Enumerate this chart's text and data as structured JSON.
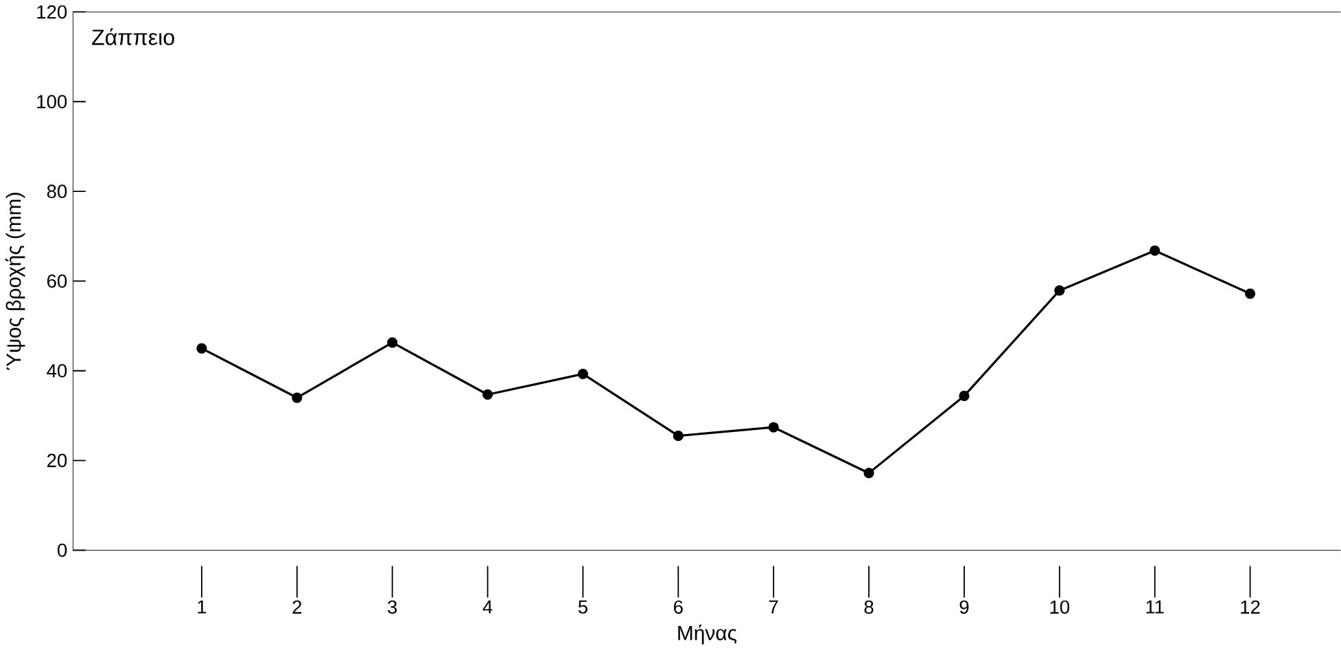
{
  "chart_data": {
    "type": "line",
    "title": "Ζάππειο",
    "xlabel": "Μήνας",
    "ylabel": "Ύψος βροχής (mm)",
    "x": [
      1,
      2,
      3,
      4,
      5,
      6,
      7,
      8,
      9,
      10,
      11,
      12
    ],
    "series": [
      {
        "color": "#000000",
        "values": [
          45,
          34,
          46.3,
          34.7,
          39.3,
          25.5,
          27.4,
          17.2,
          34.4,
          57.9,
          66.8,
          57.2
        ]
      }
    ],
    "xlim": [
      -0.35,
      12.95
    ],
    "ylim": [
      0,
      120
    ],
    "xticks": [
      1,
      2,
      3,
      4,
      5,
      6,
      7,
      8,
      9,
      10,
      11,
      12
    ],
    "yticks": [
      0,
      20,
      40,
      60,
      80,
      100,
      120
    ],
    "marker": "circle",
    "line_style": "solid",
    "grid": false
  }
}
